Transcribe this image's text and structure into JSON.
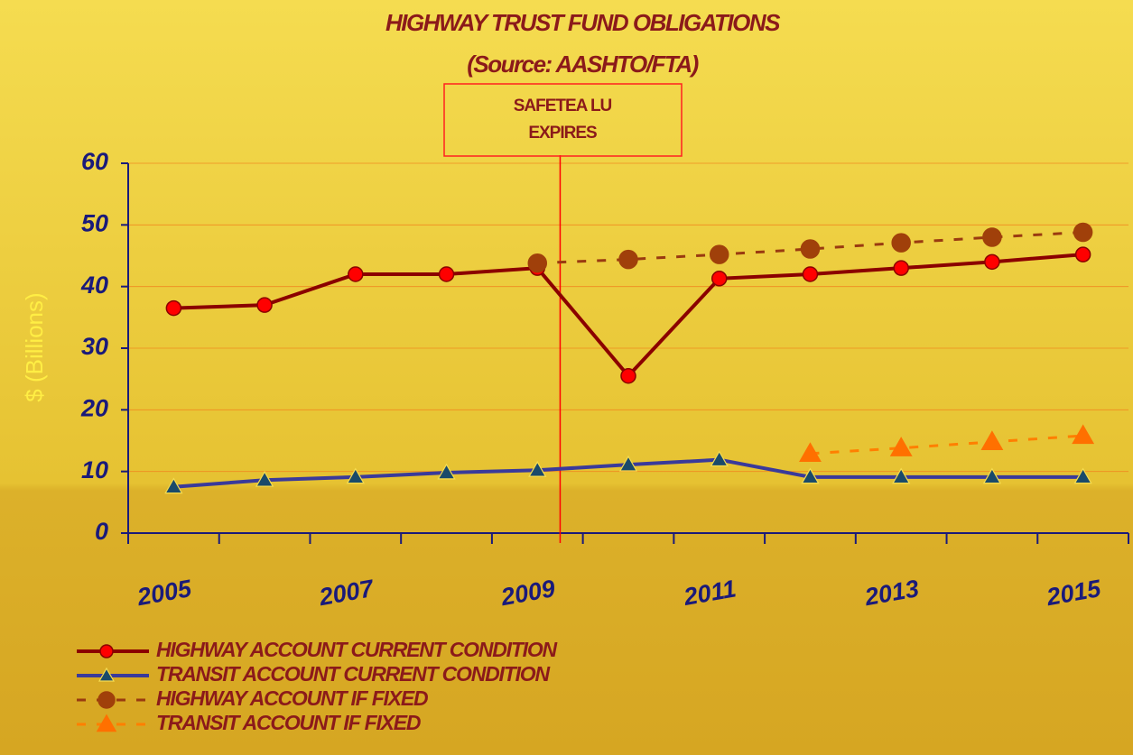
{
  "chart_data": {
    "type": "line",
    "title": "HIGHWAY TRUST FUND OBLIGATIONS",
    "subtitle": "(Source: AASHTO/FTA)",
    "annotation": "SAFETEA LU EXPIRES",
    "ylabel": "$ (Billions)",
    "categories": [
      "2005",
      null,
      "2007",
      null,
      "2009",
      null,
      "2011",
      null,
      "2013",
      null,
      "2015"
    ],
    "series": [
      {
        "name": "HIGHWAY ACCOUNT CURRENT CONDITION",
        "color": "#8b0000",
        "marker_color": "#ff0000",
        "marker": "circle",
        "dashed": false,
        "values": [
          36.5,
          37,
          42,
          42,
          43,
          25.5,
          41.3,
          42,
          43,
          44,
          45.2
        ]
      },
      {
        "name": "TRANSIT ACCOUNT CURRENT CONDITION",
        "color": "#3a3a9a",
        "marker_color": "#1a4a6a",
        "marker": "triangle",
        "dashed": false,
        "values": [
          7.5,
          8.6,
          9.1,
          9.8,
          10.2,
          11.1,
          11.9,
          9.1,
          9.1,
          9.1,
          9.1
        ]
      },
      {
        "name": "HIGHWAY ACCOUNT IF FIXED",
        "color": "#9a3a10",
        "marker_color": "#a0400a",
        "marker": "circle",
        "dashed": true,
        "values": [
          null,
          null,
          null,
          null,
          43.8,
          44.4,
          45.2,
          46.1,
          47.1,
          48,
          48.8
        ]
      },
      {
        "name": "TRANSIT ACCOUNT IF FIXED",
        "color": "#ff7f00",
        "marker_color": "#ff7000",
        "marker": "triangle",
        "dashed": true,
        "values": [
          null,
          null,
          null,
          null,
          null,
          null,
          null,
          12.9,
          13.8,
          14.8,
          15.8
        ]
      }
    ],
    "ylim": [
      0,
      60
    ],
    "yticks": [
      0,
      10,
      20,
      30,
      40,
      50,
      60
    ],
    "grid": true
  }
}
